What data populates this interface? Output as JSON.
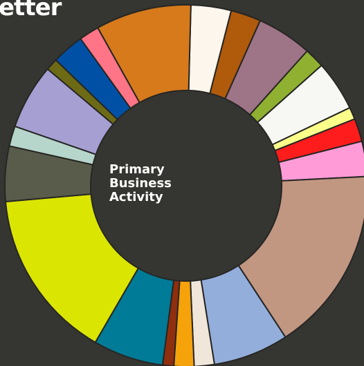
{
  "brand": {
    "fragment": "etter"
  },
  "chart_data": {
    "type": "pie",
    "style": "donut",
    "center_label": [
      "Primary",
      "Business",
      "Activity"
    ],
    "slices": [
      {
        "value": 4.0,
        "color": "#fdf6ec"
      },
      {
        "value": 3.0,
        "color": "#b05a0c"
      },
      {
        "value": 5.5,
        "color": "#9e7487"
      },
      {
        "value": 2.0,
        "color": "#8fb031"
      },
      {
        "value": 5.0,
        "color": "#f7f7f4"
      },
      {
        "value": 1.2,
        "color": "#fbff8a"
      },
      {
        "value": 2.3,
        "color": "#ff1c1c"
      },
      {
        "value": 3.5,
        "color": "#ff9cd8"
      },
      {
        "value": 18.5,
        "color": "#c19782"
      },
      {
        "value": 7.5,
        "color": "#94aedc"
      },
      {
        "value": 2.0,
        "color": "#f1e6da"
      },
      {
        "value": 2.0,
        "color": "#f5a20b"
      },
      {
        "value": 1.1,
        "color": "#8f2f0e"
      },
      {
        "value": 7.0,
        "color": "#007b97"
      },
      {
        "value": 17.0,
        "color": "#dbe502"
      },
      {
        "value": 5.5,
        "color": "#5a5c4b"
      },
      {
        "value": 2.0,
        "color": "#b7d6cb"
      },
      {
        "value": 6.5,
        "color": "#a69fd2"
      },
      {
        "value": 1.2,
        "color": "#6d6a16"
      },
      {
        "value": 3.2,
        "color": "#0051a6"
      },
      {
        "value": 2.0,
        "color": "#ff7486"
      },
      {
        "value": 9.5,
        "color": "#d77a1b"
      }
    ]
  }
}
